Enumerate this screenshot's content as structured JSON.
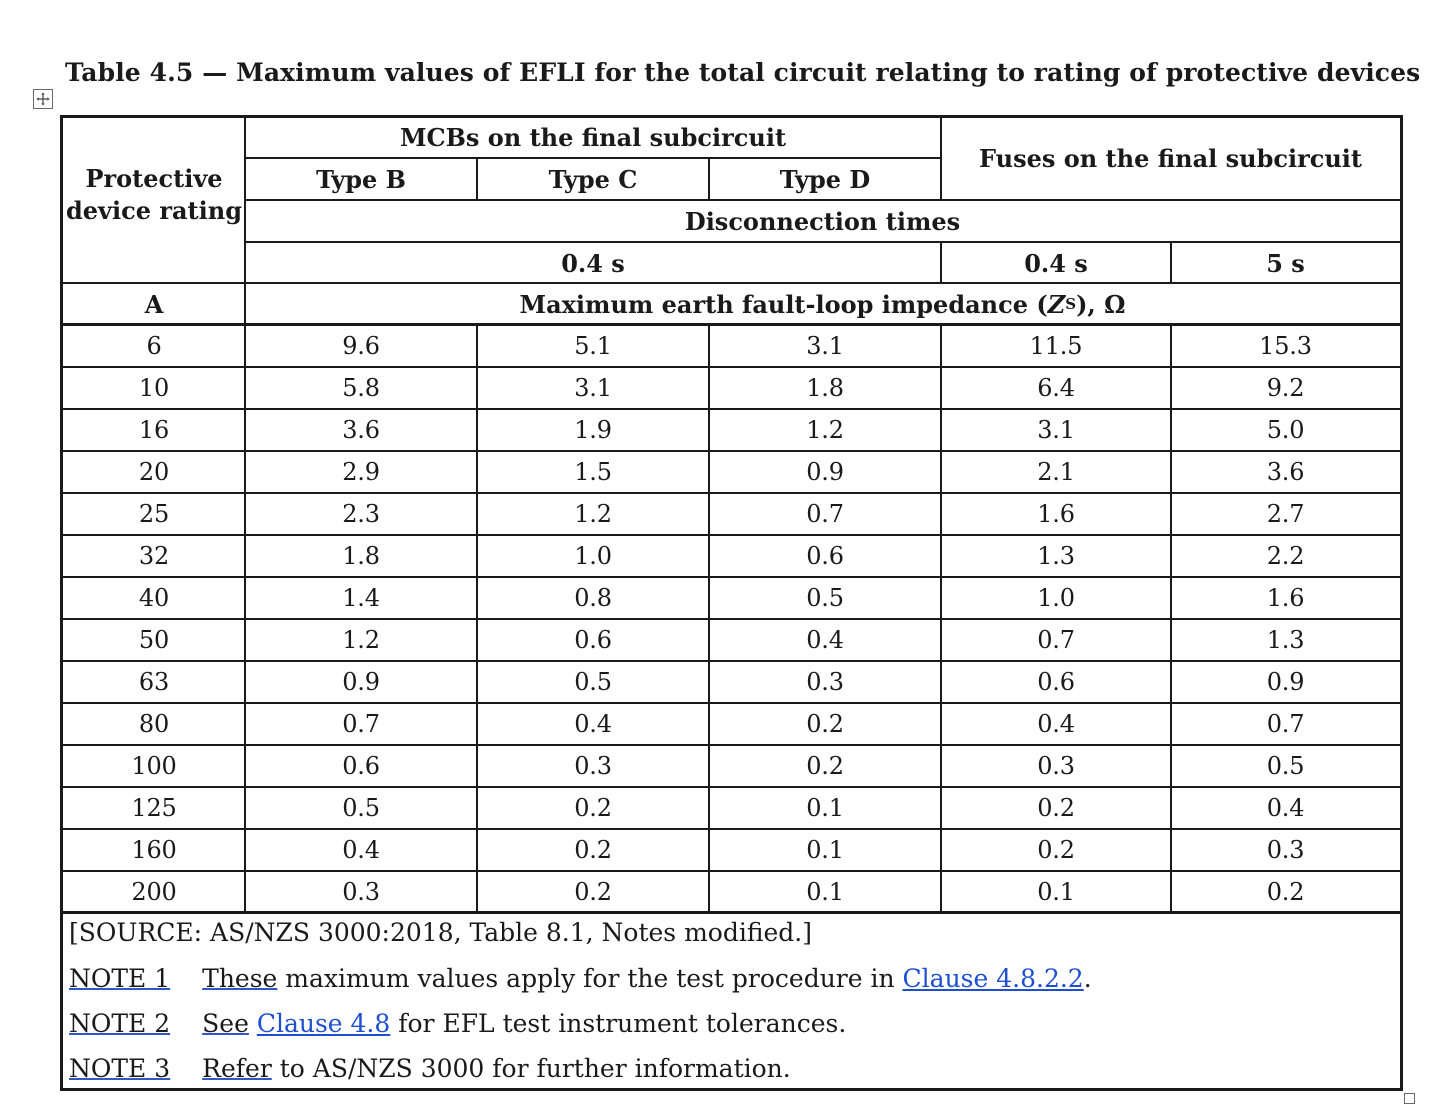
{
  "caption": "Table 4.5 — Maximum values of EFLI for the total circuit relating to rating of protective devices",
  "headers": {
    "rating_label": "Protective device rating",
    "mcb_group": "MCBs on the final subcircuit",
    "fuse_group": "Fuses on the final subcircuit",
    "type_b": "Type B",
    "type_c": "Type C",
    "type_d": "Type D",
    "disconnection": "Disconnection times",
    "time_mcb": "0.4 s",
    "time_fuse_short": "0.4 s",
    "time_fuse_long": "5 s",
    "unit": "A",
    "impedance_pre": "Maximum earth fault-loop impedance (",
    "impedance_z": "Z",
    "impedance_sub": "S",
    "impedance_post": "), Ω"
  },
  "rows": [
    [
      "6",
      "9.6",
      "5.1",
      "3.1",
      "11.5",
      "15.3"
    ],
    [
      "10",
      "5.8",
      "3.1",
      "1.8",
      "6.4",
      "9.2"
    ],
    [
      "16",
      "3.6",
      "1.9",
      "1.2",
      "3.1",
      "5.0"
    ],
    [
      "20",
      "2.9",
      "1.5",
      "0.9",
      "2.1",
      "3.6"
    ],
    [
      "25",
      "2.3",
      "1.2",
      "0.7",
      "1.6",
      "2.7"
    ],
    [
      "32",
      "1.8",
      "1.0",
      "0.6",
      "1.3",
      "2.2"
    ],
    [
      "40",
      "1.4",
      "0.8",
      "0.5",
      "1.0",
      "1.6"
    ],
    [
      "50",
      "1.2",
      "0.6",
      "0.4",
      "0.7",
      "1.3"
    ],
    [
      "63",
      "0.9",
      "0.5",
      "0.3",
      "0.6",
      "0.9"
    ],
    [
      "80",
      "0.7",
      "0.4",
      "0.2",
      "0.4",
      "0.7"
    ],
    [
      "100",
      "0.6",
      "0.3",
      "0.2",
      "0.3",
      "0.5"
    ],
    [
      "125",
      "0.5",
      "0.2",
      "0.1",
      "0.2",
      "0.4"
    ],
    [
      "160",
      "0.4",
      "0.2",
      "0.1",
      "0.2",
      "0.3"
    ],
    [
      "200",
      "0.3",
      "0.2",
      "0.1",
      "0.1",
      "0.2"
    ]
  ],
  "footer": {
    "source": "[SOURCE: AS/NZS 3000:2018, Table 8.1, Notes modified.]",
    "note1_label": "NOTE 1",
    "note1_word": "These",
    "note1_text": " maximum values apply for the test procedure in ",
    "note1_link": "Clause 4.8.2.2",
    "note1_end": ".",
    "note2_label": "NOTE 2",
    "note2_word": "See",
    "note2_link": "Clause 4.8",
    "note2_text": " for EFL test instrument tolerances.",
    "note3_label": "NOTE 3",
    "note3_word": "Refer",
    "note3_text": " to AS/NZS 3000 for further information."
  },
  "colors": {
    "link": "#1f4fd1",
    "rule": "#1a1a1a"
  }
}
